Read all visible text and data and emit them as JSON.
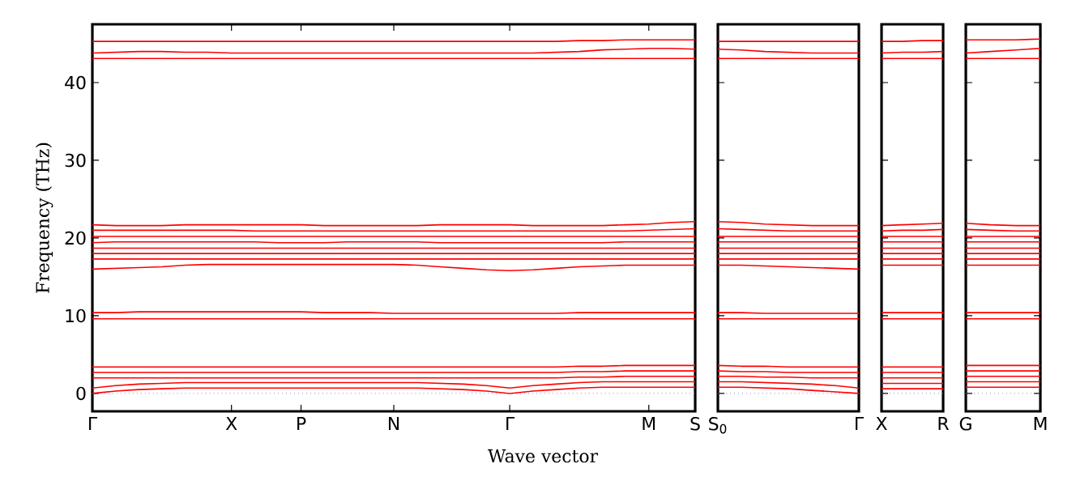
{
  "chart_data": [
    {
      "type": "line",
      "ylabel": "Frequency (THz)",
      "xlabel": "Wave vector",
      "color": "#ff0000",
      "ylim": [
        -2.3,
        47.5
      ],
      "categories": [
        "Γ",
        null,
        null,
        null,
        null,
        null,
        "X",
        null,
        null,
        "P",
        null,
        null,
        null,
        "N",
        null,
        null,
        null,
        null,
        "Γ",
        null,
        null,
        null,
        null,
        null,
        "M",
        null,
        "S"
      ],
      "yticks": [
        0,
        10,
        20,
        30,
        40
      ],
      "ref_lines": [
        {
          "axis": "y",
          "value": 0,
          "color": "#8080ff",
          "line_style": "dotted"
        }
      ],
      "series": [
        {
          "values": [
            45.3,
            45.3,
            45.3,
            45.3,
            45.3,
            45.3,
            45.3,
            45.3,
            45.3,
            45.3,
            45.3,
            45.3,
            45.3,
            45.3,
            45.3,
            45.3,
            45.3,
            45.3,
            45.3,
            45.3,
            45.3,
            45.4,
            45.4,
            45.5,
            45.5,
            45.5,
            45.5
          ]
        },
        {
          "values": [
            43.8,
            43.9,
            44.0,
            44.0,
            43.9,
            43.9,
            43.8,
            43.8,
            43.8,
            43.8,
            43.8,
            43.8,
            43.8,
            43.8,
            43.8,
            43.8,
            43.8,
            43.8,
            43.8,
            43.8,
            43.9,
            44.0,
            44.2,
            44.3,
            44.4,
            44.4,
            44.3
          ]
        },
        {
          "values": [
            43.1,
            43.1,
            43.1,
            43.1,
            43.1,
            43.1,
            43.1,
            43.1,
            43.1,
            43.1,
            43.1,
            43.1,
            43.1,
            43.1,
            43.1,
            43.1,
            43.1,
            43.1,
            43.1,
            43.1,
            43.1,
            43.1,
            43.1,
            43.1,
            43.1,
            43.1,
            43.1
          ]
        },
        {
          "values": [
            21.7,
            21.6,
            21.6,
            21.6,
            21.7,
            21.7,
            21.7,
            21.7,
            21.7,
            21.7,
            21.6,
            21.6,
            21.6,
            21.6,
            21.6,
            21.7,
            21.7,
            21.7,
            21.7,
            21.6,
            21.6,
            21.6,
            21.6,
            21.7,
            21.8,
            22.0,
            22.1
          ]
        },
        {
          "values": [
            21.0,
            21.0,
            21.0,
            21.0,
            21.0,
            21.0,
            21.0,
            20.9,
            20.9,
            20.9,
            20.9,
            20.9,
            20.9,
            20.9,
            20.9,
            20.9,
            20.9,
            20.9,
            20.9,
            20.9,
            20.9,
            20.9,
            20.9,
            20.9,
            21.0,
            21.1,
            21.2
          ]
        },
        {
          "values": [
            20.2,
            20.2,
            20.2,
            20.2,
            20.2,
            20.2,
            20.2,
            20.2,
            20.2,
            20.2,
            20.2,
            20.2,
            20.2,
            20.2,
            20.2,
            20.2,
            20.2,
            20.2,
            20.2,
            20.2,
            20.2,
            20.2,
            20.2,
            20.2,
            20.2,
            20.2,
            20.2
          ]
        },
        {
          "values": [
            19.4,
            19.5,
            19.5,
            19.5,
            19.5,
            19.5,
            19.5,
            19.5,
            19.4,
            19.4,
            19.4,
            19.5,
            19.5,
            19.5,
            19.5,
            19.4,
            19.4,
            19.4,
            19.4,
            19.4,
            19.4,
            19.4,
            19.4,
            19.5,
            19.5,
            19.5,
            19.5
          ]
        },
        {
          "values": [
            18.7,
            18.7,
            18.7,
            18.7,
            18.7,
            18.7,
            18.7,
            18.7,
            18.7,
            18.7,
            18.7,
            18.7,
            18.7,
            18.7,
            18.7,
            18.7,
            18.7,
            18.7,
            18.7,
            18.7,
            18.7,
            18.7,
            18.7,
            18.7,
            18.7,
            18.7,
            18.7
          ]
        },
        {
          "values": [
            18.0,
            18.0,
            18.0,
            18.0,
            18.0,
            18.0,
            18.0,
            18.0,
            18.0,
            18.0,
            18.0,
            18.0,
            18.0,
            18.0,
            18.0,
            18.0,
            18.0,
            18.0,
            18.0,
            18.0,
            18.0,
            18.0,
            18.0,
            18.0,
            18.0,
            18.0,
            18.0
          ]
        },
        {
          "values": [
            17.3,
            17.3,
            17.3,
            17.3,
            17.3,
            17.3,
            17.3,
            17.3,
            17.3,
            17.3,
            17.3,
            17.3,
            17.3,
            17.3,
            17.3,
            17.3,
            17.3,
            17.3,
            17.3,
            17.3,
            17.3,
            17.3,
            17.3,
            17.3,
            17.3,
            17.3,
            17.3
          ]
        },
        {
          "values": [
            16.0,
            16.1,
            16.2,
            16.3,
            16.5,
            16.6,
            16.6,
            16.6,
            16.6,
            16.6,
            16.6,
            16.6,
            16.6,
            16.6,
            16.5,
            16.3,
            16.1,
            15.9,
            15.8,
            15.9,
            16.1,
            16.3,
            16.4,
            16.5,
            16.5,
            16.5,
            16.5
          ]
        },
        {
          "values": [
            10.4,
            10.4,
            10.5,
            10.5,
            10.5,
            10.5,
            10.5,
            10.5,
            10.5,
            10.5,
            10.4,
            10.4,
            10.4,
            10.3,
            10.3,
            10.3,
            10.3,
            10.3,
            10.3,
            10.3,
            10.3,
            10.4,
            10.4,
            10.4,
            10.4,
            10.4,
            10.4
          ]
        },
        {
          "values": [
            9.6,
            9.6,
            9.6,
            9.6,
            9.6,
            9.6,
            9.6,
            9.6,
            9.6,
            9.6,
            9.6,
            9.6,
            9.6,
            9.6,
            9.6,
            9.6,
            9.6,
            9.6,
            9.6,
            9.6,
            9.6,
            9.6,
            9.6,
            9.6,
            9.6,
            9.6,
            9.6
          ]
        },
        {
          "values": [
            3.4,
            3.4,
            3.4,
            3.4,
            3.4,
            3.4,
            3.4,
            3.4,
            3.4,
            3.4,
            3.4,
            3.4,
            3.4,
            3.4,
            3.4,
            3.4,
            3.4,
            3.4,
            3.4,
            3.4,
            3.4,
            3.5,
            3.5,
            3.6,
            3.6,
            3.6,
            3.6
          ]
        },
        {
          "values": [
            2.7,
            2.7,
            2.7,
            2.7,
            2.7,
            2.7,
            2.7,
            2.7,
            2.7,
            2.7,
            2.7,
            2.7,
            2.7,
            2.7,
            2.7,
            2.7,
            2.7,
            2.7,
            2.7,
            2.7,
            2.7,
            2.8,
            2.8,
            2.9,
            2.9,
            2.9,
            2.9
          ]
        },
        {
          "values": [
            2.0,
            2.0,
            2.0,
            2.0,
            2.0,
            2.0,
            2.0,
            2.0,
            2.0,
            2.0,
            2.0,
            2.0,
            2.0,
            2.0,
            2.0,
            2.0,
            2.0,
            2.0,
            2.0,
            2.0,
            2.0,
            2.1,
            2.1,
            2.2,
            2.2,
            2.2,
            2.2
          ]
        },
        {
          "values": [
            0.7,
            1.0,
            1.2,
            1.3,
            1.4,
            1.4,
            1.4,
            1.4,
            1.4,
            1.4,
            1.4,
            1.4,
            1.4,
            1.4,
            1.4,
            1.3,
            1.2,
            1.0,
            0.7,
            1.0,
            1.2,
            1.4,
            1.5,
            1.5,
            1.5,
            1.5,
            1.5
          ]
        },
        {
          "values": [
            0,
            0.3,
            0.5,
            0.6,
            0.7,
            0.7,
            0.7,
            0.7,
            0.7,
            0.7,
            0.7,
            0.7,
            0.7,
            0.7,
            0.7,
            0.6,
            0.5,
            0.3,
            0,
            0.3,
            0.5,
            0.7,
            0.8,
            0.8,
            0.8,
            0.8,
            0.8
          ]
        }
      ]
    },
    {
      "type": "line",
      "color": "#ff0000",
      "ylim": [
        -2.3,
        47.5
      ],
      "tick_labels": "x",
      "categories": [
        "S$_{0}$",
        null,
        null,
        null,
        null,
        null,
        "Γ"
      ],
      "yticks": [
        0,
        10,
        20,
        30,
        40
      ],
      "ref_lines": [
        {
          "axis": "y",
          "value": 0,
          "color": "#8080ff",
          "line_style": "dotted"
        }
      ],
      "series": [
        {
          "values": [
            45.3,
            45.3,
            45.3,
            45.3,
            45.3,
            45.3,
            45.3
          ]
        },
        {
          "values": [
            44.3,
            44.2,
            44.0,
            43.9,
            43.8,
            43.8,
            43.8
          ]
        },
        {
          "values": [
            43.1,
            43.1,
            43.1,
            43.1,
            43.1,
            43.1,
            43.1
          ]
        },
        {
          "values": [
            22.1,
            22.0,
            21.8,
            21.7,
            21.6,
            21.6,
            21.6
          ]
        },
        {
          "values": [
            21.2,
            21.1,
            21.0,
            20.9,
            20.9,
            20.9,
            20.9
          ]
        },
        {
          "values": [
            20.2,
            20.2,
            20.2,
            20.2,
            20.2,
            20.2,
            20.2
          ]
        },
        {
          "values": [
            19.5,
            19.5,
            19.5,
            19.5,
            19.5,
            19.5,
            19.5
          ]
        },
        {
          "values": [
            18.7,
            18.7,
            18.7,
            18.7,
            18.7,
            18.7,
            18.7
          ]
        },
        {
          "values": [
            18.0,
            18.0,
            18.0,
            18.0,
            18.0,
            18.0,
            18.0
          ]
        },
        {
          "values": [
            17.3,
            17.3,
            17.3,
            17.3,
            17.3,
            17.3,
            17.3
          ]
        },
        {
          "values": [
            16.5,
            16.5,
            16.4,
            16.3,
            16.2,
            16.1,
            16.0
          ]
        },
        {
          "values": [
            10.4,
            10.4,
            10.3,
            10.3,
            10.3,
            10.3,
            10.3
          ]
        },
        {
          "values": [
            9.6,
            9.6,
            9.6,
            9.6,
            9.6,
            9.6,
            9.6
          ]
        },
        {
          "values": [
            3.6,
            3.5,
            3.5,
            3.4,
            3.4,
            3.4,
            3.4
          ]
        },
        {
          "values": [
            2.9,
            2.8,
            2.8,
            2.7,
            2.7,
            2.7,
            2.7
          ]
        },
        {
          "values": [
            2.2,
            2.2,
            2.1,
            2.1,
            2.0,
            2.0,
            2.0
          ]
        },
        {
          "values": [
            1.5,
            1.5,
            1.4,
            1.3,
            1.2,
            1.0,
            0.7
          ]
        },
        {
          "values": [
            0.8,
            0.8,
            0.7,
            0.6,
            0.4,
            0.2,
            0
          ]
        }
      ]
    },
    {
      "type": "line",
      "color": "#ff0000",
      "ylim": [
        -2.3,
        47.5
      ],
      "tick_labels": "x",
      "categories": [
        "X",
        null,
        null,
        "R"
      ],
      "yticks": [
        0,
        10,
        20,
        30,
        40
      ],
      "ref_lines": [
        {
          "axis": "y",
          "value": 0,
          "color": "#8080ff",
          "line_style": "dotted"
        }
      ],
      "series": [
        {
          "values": [
            45.3,
            45.3,
            45.4,
            45.4
          ]
        },
        {
          "values": [
            43.8,
            43.9,
            43.9,
            44.0
          ]
        },
        {
          "values": [
            43.1,
            43.1,
            43.1,
            43.1
          ]
        },
        {
          "values": [
            21.6,
            21.7,
            21.8,
            21.9
          ]
        },
        {
          "values": [
            20.9,
            21.0,
            21.0,
            21.1
          ]
        },
        {
          "values": [
            20.2,
            20.2,
            20.2,
            20.2
          ]
        },
        {
          "values": [
            19.5,
            19.5,
            19.5,
            19.5
          ]
        },
        {
          "values": [
            18.7,
            18.7,
            18.7,
            18.7
          ]
        },
        {
          "values": [
            18.0,
            18.0,
            18.0,
            18.0
          ]
        },
        {
          "values": [
            17.3,
            17.3,
            17.3,
            17.3
          ]
        },
        {
          "values": [
            16.5,
            16.5,
            16.5,
            16.5
          ]
        },
        {
          "values": [
            10.4,
            10.4,
            10.4,
            10.4
          ]
        },
        {
          "values": [
            9.6,
            9.6,
            9.6,
            9.6
          ]
        },
        {
          "values": [
            3.4,
            3.4,
            3.4,
            3.4
          ]
        },
        {
          "values": [
            2.7,
            2.7,
            2.7,
            2.7
          ]
        },
        {
          "values": [
            2.0,
            2.0,
            2.0,
            2.0
          ]
        },
        {
          "values": [
            1.3,
            1.3,
            1.3,
            1.3
          ]
        },
        {
          "values": [
            0.6,
            0.6,
            0.6,
            0.6
          ]
        }
      ]
    },
    {
      "type": "line",
      "color": "#ff0000",
      "ylim": [
        -2.3,
        47.5
      ],
      "tick_labels": "x",
      "categories": [
        "G",
        null,
        null,
        "M"
      ],
      "yticks": [
        0,
        10,
        20,
        30,
        40
      ],
      "ref_lines": [
        {
          "axis": "y",
          "value": 0,
          "color": "#8080ff",
          "line_style": "dotted"
        }
      ],
      "series": [
        {
          "values": [
            45.5,
            45.5,
            45.5,
            45.6
          ]
        },
        {
          "values": [
            43.8,
            44.0,
            44.2,
            44.4
          ]
        },
        {
          "values": [
            43.1,
            43.1,
            43.1,
            43.1
          ]
        },
        {
          "values": [
            21.9,
            21.7,
            21.6,
            21.6
          ]
        },
        {
          "values": [
            21.1,
            21.0,
            20.9,
            20.9
          ]
        },
        {
          "values": [
            20.2,
            20.2,
            20.2,
            20.2
          ]
        },
        {
          "values": [
            19.5,
            19.5,
            19.5,
            19.5
          ]
        },
        {
          "values": [
            18.7,
            18.7,
            18.7,
            18.7
          ]
        },
        {
          "values": [
            18.0,
            18.0,
            18.0,
            18.0
          ]
        },
        {
          "values": [
            17.3,
            17.3,
            17.3,
            17.3
          ]
        },
        {
          "values": [
            16.5,
            16.5,
            16.5,
            16.5
          ]
        },
        {
          "values": [
            10.4,
            10.4,
            10.4,
            10.4
          ]
        },
        {
          "values": [
            9.6,
            9.6,
            9.6,
            9.6
          ]
        },
        {
          "values": [
            3.6,
            3.6,
            3.6,
            3.6
          ]
        },
        {
          "values": [
            2.9,
            2.9,
            2.9,
            2.9
          ]
        },
        {
          "values": [
            2.2,
            2.2,
            2.2,
            2.2
          ]
        },
        {
          "values": [
            1.5,
            1.5,
            1.5,
            1.5
          ]
        },
        {
          "values": [
            0.8,
            0.8,
            0.8,
            0.8
          ]
        }
      ]
    }
  ]
}
